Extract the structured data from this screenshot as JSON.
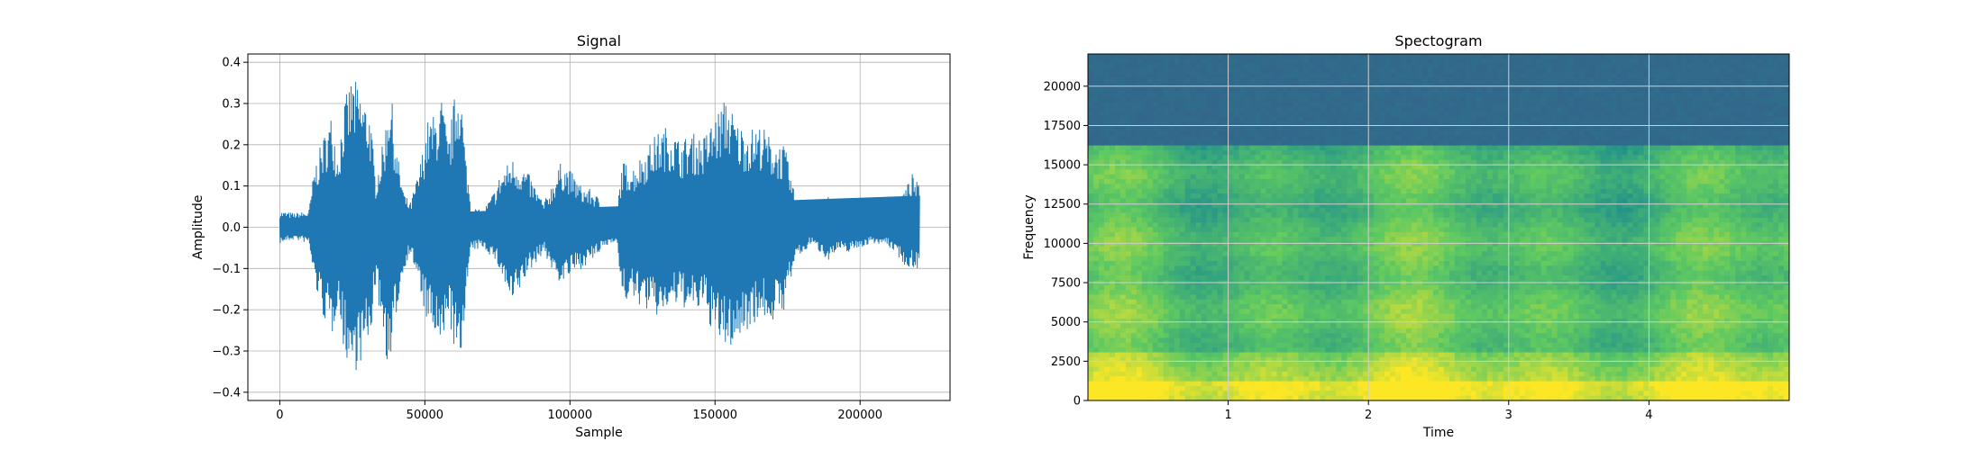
{
  "chart_data": [
    {
      "type": "line",
      "title": "Signal",
      "xlabel": "Sample",
      "ylabel": "Amplitude",
      "xlim": [
        -11000,
        231000
      ],
      "ylim": [
        -0.42,
        0.42
      ],
      "x_ticks": [
        0,
        50000,
        100000,
        150000,
        200000
      ],
      "x_tick_labels": [
        "0",
        "50000",
        "100000",
        "150000",
        "200000"
      ],
      "y_ticks": [
        -0.4,
        -0.3,
        -0.2,
        -0.1,
        0.0,
        0.1,
        0.2,
        0.3,
        0.4
      ],
      "y_tick_labels": [
        "−0.4",
        "−0.3",
        "−0.2",
        "−0.1",
        "0.0",
        "0.1",
        "0.2",
        "0.3",
        "0.4"
      ],
      "grid": true,
      "series_color": "#1f77b4",
      "num_samples": 220500,
      "envelope": [
        [
          0,
          0.04,
          -0.04
        ],
        [
          5000,
          0.035,
          -0.03
        ],
        [
          10000,
          0.04,
          -0.04
        ],
        [
          12000,
          0.15,
          -0.14
        ],
        [
          15000,
          0.22,
          -0.22
        ],
        [
          18000,
          0.28,
          -0.27
        ],
        [
          20000,
          0.18,
          -0.18
        ],
        [
          22000,
          0.3,
          -0.3
        ],
        [
          25000,
          0.37,
          -0.36
        ],
        [
          28000,
          0.33,
          -0.33
        ],
        [
          31000,
          0.29,
          -0.29
        ],
        [
          33000,
          0.12,
          -0.14
        ],
        [
          36000,
          0.22,
          -0.28
        ],
        [
          38000,
          0.36,
          -0.38
        ],
        [
          40000,
          0.2,
          -0.22
        ],
        [
          43000,
          0.08,
          -0.1
        ],
        [
          45000,
          0.06,
          -0.06
        ],
        [
          48000,
          0.14,
          -0.15
        ],
        [
          51000,
          0.26,
          -0.24
        ],
        [
          54000,
          0.28,
          -0.28
        ],
        [
          56000,
          0.32,
          -0.33
        ],
        [
          58000,
          0.2,
          -0.2
        ],
        [
          60000,
          0.31,
          -0.3
        ],
        [
          62000,
          0.38,
          -0.37
        ],
        [
          64000,
          0.18,
          -0.18
        ],
        [
          66000,
          0.05,
          -0.06
        ],
        [
          70000,
          0.04,
          -0.05
        ],
        [
          74000,
          0.09,
          -0.08
        ],
        [
          76000,
          0.13,
          -0.11
        ],
        [
          80000,
          0.17,
          -0.2
        ],
        [
          85000,
          0.14,
          -0.12
        ],
        [
          88000,
          0.1,
          -0.09
        ],
        [
          91000,
          0.06,
          -0.06
        ],
        [
          94000,
          0.11,
          -0.11
        ],
        [
          97000,
          0.16,
          -0.14
        ],
        [
          100000,
          0.14,
          -0.12
        ],
        [
          104000,
          0.1,
          -0.1
        ],
        [
          108000,
          0.09,
          -0.08
        ],
        [
          112000,
          0.05,
          -0.05
        ],
        [
          116000,
          0.03,
          -0.03
        ],
        [
          118000,
          0.16,
          -0.18
        ],
        [
          122000,
          0.15,
          -0.18
        ],
        [
          126000,
          0.19,
          -0.2
        ],
        [
          130000,
          0.23,
          -0.22
        ],
        [
          134000,
          0.25,
          -0.2
        ],
        [
          138000,
          0.21,
          -0.19
        ],
        [
          142000,
          0.23,
          -0.21
        ],
        [
          146000,
          0.22,
          -0.2
        ],
        [
          150000,
          0.27,
          -0.27
        ],
        [
          154000,
          0.32,
          -0.3
        ],
        [
          158000,
          0.25,
          -0.28
        ],
        [
          162000,
          0.24,
          -0.24
        ],
        [
          166000,
          0.25,
          -0.22
        ],
        [
          170000,
          0.21,
          -0.23
        ],
        [
          174000,
          0.2,
          -0.2
        ],
        [
          178000,
          0.06,
          -0.07
        ],
        [
          180000,
          0.06,
          -0.07
        ],
        [
          183000,
          0.04,
          -0.04
        ],
        [
          186000,
          0.07,
          -0.06
        ],
        [
          189000,
          0.08,
          -0.08
        ],
        [
          192000,
          0.06,
          -0.06
        ],
        [
          196000,
          0.07,
          -0.06
        ],
        [
          200000,
          0.07,
          -0.05
        ],
        [
          204000,
          0.05,
          -0.04
        ],
        [
          208000,
          0.03,
          -0.04
        ],
        [
          212000,
          0.05,
          -0.06
        ],
        [
          216000,
          0.1,
          -0.1
        ],
        [
          218000,
          0.13,
          -0.1
        ],
        [
          220500,
          0.1,
          -0.1
        ]
      ]
    },
    {
      "type": "heatmap",
      "title": "Spectogram",
      "xlabel": "Time",
      "ylabel": "Frequency",
      "xlim": [
        0.0,
        5.0
      ],
      "ylim": [
        0,
        22050
      ],
      "x_ticks": [
        1,
        2,
        3,
        4
      ],
      "x_tick_labels": [
        "1",
        "2",
        "3",
        "4"
      ],
      "y_ticks": [
        0,
        2500,
        5000,
        7500,
        10000,
        12500,
        15000,
        17500,
        20000
      ],
      "y_tick_labels": [
        "0",
        "2500",
        "5000",
        "7500",
        "10000",
        "12500",
        "15000",
        "17500",
        "20000"
      ],
      "grid": true,
      "colormap": "viridis",
      "cutoff_frequency": 16000,
      "low_band_frequency": 1200
    }
  ]
}
